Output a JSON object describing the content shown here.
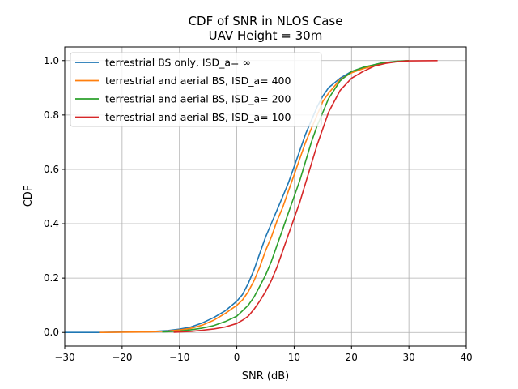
{
  "chart_data": {
    "type": "line",
    "title": "CDF of SNR in NLOS Case",
    "subtitle": "UAV Height = 30m",
    "xlabel": "SNR (dB)",
    "ylabel": "CDF",
    "xlim": [
      -30,
      40
    ],
    "ylim": [
      -0.05,
      1.05
    ],
    "xticks": [
      -30,
      -20,
      -10,
      0,
      10,
      20,
      30,
      40
    ],
    "xtick_labels": [
      "−30",
      "−20",
      "−10",
      "0",
      "10",
      "20",
      "30",
      "40"
    ],
    "yticks": [
      0.0,
      0.2,
      0.4,
      0.6,
      0.8,
      1.0
    ],
    "ytick_labels": [
      "0.0",
      "0.2",
      "0.4",
      "0.6",
      "0.8",
      "1.0"
    ],
    "grid": true,
    "legend_position": "top-left",
    "series": [
      {
        "name": "terrestrial BS only, ISD_a= ∞",
        "color": "#1f77b4",
        "points": [
          [
            -30,
            0.0
          ],
          [
            -24,
            0.0
          ],
          [
            -15,
            0.003
          ],
          [
            -12,
            0.007
          ],
          [
            -10,
            0.012
          ],
          [
            -8,
            0.02
          ],
          [
            -6,
            0.035
          ],
          [
            -4,
            0.055
          ],
          [
            -2,
            0.08
          ],
          [
            0,
            0.115
          ],
          [
            1,
            0.14
          ],
          [
            2,
            0.18
          ],
          [
            3,
            0.23
          ],
          [
            4,
            0.29
          ],
          [
            5,
            0.35
          ],
          [
            6,
            0.4
          ],
          [
            7,
            0.45
          ],
          [
            8,
            0.5
          ],
          [
            9,
            0.55
          ],
          [
            10,
            0.61
          ],
          [
            11,
            0.67
          ],
          [
            12,
            0.73
          ],
          [
            13,
            0.78
          ],
          [
            14,
            0.83
          ],
          [
            15,
            0.87
          ],
          [
            16,
            0.9
          ],
          [
            18,
            0.935
          ],
          [
            20,
            0.96
          ],
          [
            22,
            0.975
          ],
          [
            25,
            0.99
          ],
          [
            28,
            0.997
          ],
          [
            30,
            1.0
          ]
        ]
      },
      {
        "name": "terrestrial and aerial BS,  ISD_a= 400",
        "color": "#ff7f0e",
        "points": [
          [
            -24,
            0.0
          ],
          [
            -15,
            0.002
          ],
          [
            -12,
            0.005
          ],
          [
            -10,
            0.009
          ],
          [
            -8,
            0.015
          ],
          [
            -6,
            0.027
          ],
          [
            -4,
            0.045
          ],
          [
            -2,
            0.07
          ],
          [
            0,
            0.1
          ],
          [
            1,
            0.12
          ],
          [
            2,
            0.15
          ],
          [
            3,
            0.19
          ],
          [
            4,
            0.24
          ],
          [
            5,
            0.3
          ],
          [
            6,
            0.35
          ],
          [
            7,
            0.41
          ],
          [
            8,
            0.46
          ],
          [
            9,
            0.52
          ],
          [
            10,
            0.58
          ],
          [
            11,
            0.64
          ],
          [
            12,
            0.7
          ],
          [
            13,
            0.75
          ],
          [
            14,
            0.8
          ],
          [
            15,
            0.85
          ],
          [
            16,
            0.88
          ],
          [
            18,
            0.93
          ],
          [
            20,
            0.955
          ],
          [
            22,
            0.97
          ],
          [
            25,
            0.988
          ],
          [
            28,
            0.997
          ],
          [
            30,
            1.0
          ]
        ]
      },
      {
        "name": "terrestrial and aerial BS,  ISD_a= 200",
        "color": "#2ca02c",
        "points": [
          [
            -13,
            0.002
          ],
          [
            -10,
            0.005
          ],
          [
            -8,
            0.01
          ],
          [
            -6,
            0.016
          ],
          [
            -4,
            0.025
          ],
          [
            -2,
            0.04
          ],
          [
            0,
            0.06
          ],
          [
            1,
            0.08
          ],
          [
            2,
            0.1
          ],
          [
            3,
            0.13
          ],
          [
            4,
            0.17
          ],
          [
            5,
            0.21
          ],
          [
            6,
            0.26
          ],
          [
            7,
            0.32
          ],
          [
            8,
            0.38
          ],
          [
            9,
            0.44
          ],
          [
            10,
            0.5
          ],
          [
            11,
            0.56
          ],
          [
            12,
            0.63
          ],
          [
            13,
            0.7
          ],
          [
            14,
            0.76
          ],
          [
            15,
            0.81
          ],
          [
            16,
            0.86
          ],
          [
            18,
            0.925
          ],
          [
            20,
            0.96
          ],
          [
            22,
            0.975
          ],
          [
            25,
            0.99
          ],
          [
            28,
            0.998
          ],
          [
            30,
            1.0
          ]
        ]
      },
      {
        "name": "terrestrial and aerial BS,  ISD_a= 100",
        "color": "#d62728",
        "points": [
          [
            -11,
            0.001
          ],
          [
            -8,
            0.004
          ],
          [
            -6,
            0.008
          ],
          [
            -4,
            0.013
          ],
          [
            -2,
            0.02
          ],
          [
            0,
            0.033
          ],
          [
            1,
            0.045
          ],
          [
            2,
            0.06
          ],
          [
            3,
            0.085
          ],
          [
            4,
            0.115
          ],
          [
            5,
            0.15
          ],
          [
            6,
            0.19
          ],
          [
            7,
            0.24
          ],
          [
            8,
            0.3
          ],
          [
            9,
            0.36
          ],
          [
            10,
            0.42
          ],
          [
            11,
            0.48
          ],
          [
            12,
            0.55
          ],
          [
            13,
            0.62
          ],
          [
            14,
            0.69
          ],
          [
            15,
            0.75
          ],
          [
            16,
            0.81
          ],
          [
            17,
            0.85
          ],
          [
            18,
            0.89
          ],
          [
            20,
            0.935
          ],
          [
            22,
            0.96
          ],
          [
            24,
            0.98
          ],
          [
            26,
            0.99
          ],
          [
            28,
            0.996
          ],
          [
            30,
            0.999
          ],
          [
            35,
            1.0
          ]
        ]
      }
    ]
  }
}
